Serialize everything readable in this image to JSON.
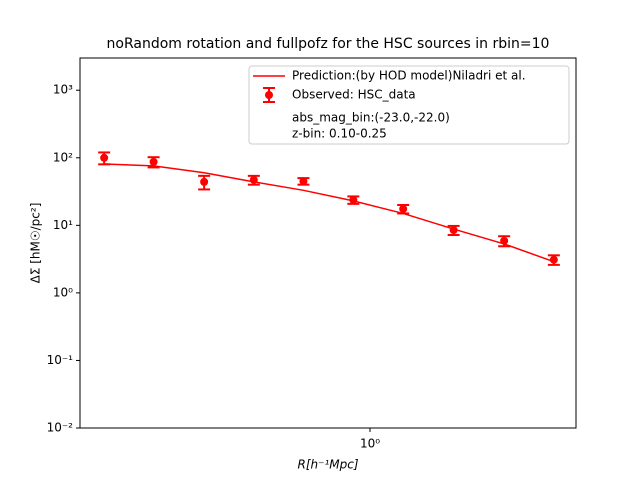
{
  "chart_data": {
    "type": "line",
    "title": "noRandom rotation and fullpofz for the HSC sources in rbin=10",
    "x_label": "R[h⁻¹Mpc]",
    "y_label": "ΔΣ [hM☉/pc²]",
    "x": [
      0.13,
      0.19,
      0.28,
      0.41,
      0.6,
      0.88,
      1.29,
      1.9,
      2.8,
      4.1
    ],
    "series": [
      {
        "name": "Prediction:(by HOD model)Niladri et al.",
        "type": "line",
        "color": "#ff0000",
        "values": [
          81,
          76,
          60,
          44,
          33,
          23,
          15,
          8.8,
          5.3,
          2.9
        ]
      },
      {
        "name": "Observed: HSC_data",
        "type": "errorbar",
        "color": "#ff0000",
        "values": [
          100,
          87,
          44,
          47,
          45,
          23.8,
          17.5,
          8.5,
          5.9,
          3.1
        ],
        "yerr": [
          20,
          15,
          10,
          7,
          5,
          3,
          2.5,
          1.3,
          1,
          0.5
        ]
      }
    ],
    "legend_notes": [
      "abs_mag_bin:(-23.0,-22.0)",
      "z-bin: 0.10-0.25"
    ],
    "xlim": [
      0.108,
      4.86
    ],
    "ylim": [
      0.01,
      3000
    ],
    "xticks": [
      {
        "value": 1,
        "label": "10⁰"
      }
    ],
    "yticks": [
      {
        "value": 0.01,
        "label": "10⁻²"
      },
      {
        "value": 0.1,
        "label": "10⁻¹"
      },
      {
        "value": 1,
        "label": "10⁰"
      },
      {
        "value": 10,
        "label": "10¹"
      },
      {
        "value": 100,
        "label": "10²"
      },
      {
        "value": 1000,
        "label": "10³"
      }
    ],
    "log_x": true,
    "log_y": true,
    "legend": "upper right"
  }
}
